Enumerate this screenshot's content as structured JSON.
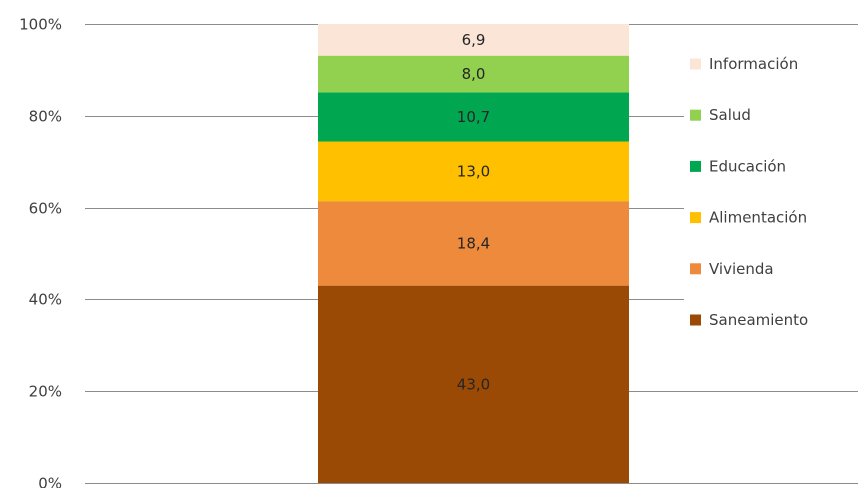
{
  "chart_data": {
    "type": "bar",
    "stacked": true,
    "percent_stacked": true,
    "categories": [
      ""
    ],
    "ylim": [
      0,
      100
    ],
    "y_ticks": [
      "0%",
      "20%",
      "40%",
      "60%",
      "80%",
      "100%"
    ],
    "grid": true,
    "legend_position": "right",
    "series": [
      {
        "name": "Saneamiento",
        "values": [
          43.0
        ],
        "label": "43,0",
        "color": "#9a4a04"
      },
      {
        "name": "Vivienda",
        "values": [
          18.4
        ],
        "label": "18,4",
        "color": "#ed8a3b"
      },
      {
        "name": "Alimentación",
        "values": [
          13.0
        ],
        "label": "13,0",
        "color": "#ffc000"
      },
      {
        "name": "Educación",
        "values": [
          10.7
        ],
        "label": "10,7",
        "color": "#00a650"
      },
      {
        "name": "Salud",
        "values": [
          8.0
        ],
        "label": "8,0",
        "color": "#92d050"
      },
      {
        "name": "Información",
        "values": [
          6.9
        ],
        "label": "6,9",
        "color": "#fbe5d6"
      }
    ]
  }
}
